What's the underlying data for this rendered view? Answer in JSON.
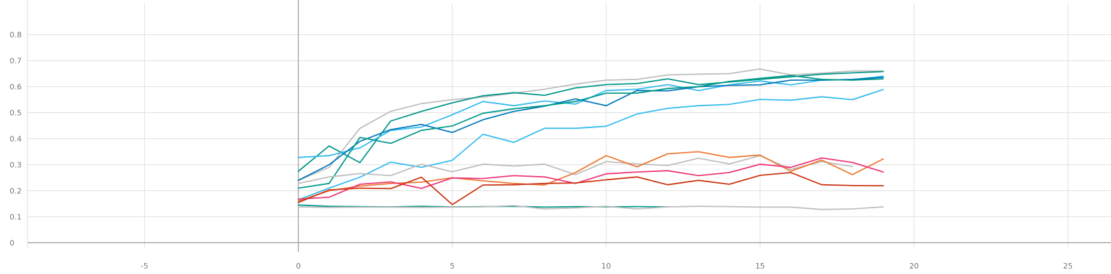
{
  "chart_data": {
    "type": "line",
    "title": "",
    "xlabel": "",
    "ylabel": "",
    "xlim": [
      -8.8,
      26.4
    ],
    "ylim": [
      -0.02,
      0.92
    ],
    "grid": true,
    "legend": "none",
    "x_ticks": [
      -5,
      0,
      5,
      10,
      15,
      20,
      25
    ],
    "x_tick_labels": [
      "-5",
      "0",
      "5",
      "10",
      "15",
      "20",
      "25"
    ],
    "y_ticks": [
      0,
      0.1,
      0.2,
      0.3,
      0.4,
      0.5,
      0.6,
      0.7,
      0.8
    ],
    "y_tick_labels": [
      "0",
      "0.1",
      "0.2",
      "0.3",
      "0.4",
      "0.5",
      "0.6",
      "0.7",
      "0.8"
    ],
    "series": [
      {
        "color": "#bdbdbd",
        "x": [
          0,
          1,
          2,
          3,
          4,
          5,
          6,
          7,
          8,
          9,
          10,
          11,
          12,
          13,
          14,
          15,
          16,
          17,
          18,
          19
        ],
        "values": [
          0.24,
          0.29,
          0.44,
          0.505,
          0.535,
          0.55,
          0.56,
          0.575,
          0.59,
          0.61,
          0.625,
          0.628,
          0.645,
          0.648,
          0.65,
          0.668,
          0.645,
          0.652,
          0.66,
          0.66
        ]
      },
      {
        "color": "#009688",
        "x": [
          0,
          1,
          2,
          3,
          4,
          5,
          6,
          7,
          8,
          9,
          10,
          11,
          12,
          13,
          14,
          15,
          16,
          17,
          18,
          19
        ],
        "values": [
          0.275,
          0.372,
          0.308,
          0.468,
          0.505,
          0.538,
          0.565,
          0.577,
          0.567,
          0.595,
          0.608,
          0.612,
          0.63,
          0.608,
          0.618,
          0.628,
          0.638,
          0.648,
          0.653,
          0.658
        ]
      },
      {
        "color": "#33bbee",
        "x": [
          0,
          1,
          2,
          3,
          4,
          5,
          6,
          7,
          8,
          9,
          10,
          11,
          12,
          13,
          14,
          15,
          16,
          17,
          18,
          19
        ],
        "values": [
          0.328,
          0.335,
          0.365,
          0.432,
          0.445,
          0.492,
          0.543,
          0.527,
          0.545,
          0.533,
          0.585,
          0.59,
          0.608,
          0.585,
          0.607,
          0.622,
          0.607,
          0.625,
          0.627,
          0.64
        ]
      },
      {
        "color": "#0077bb",
        "x": [
          0,
          1,
          2,
          3,
          4,
          5,
          6,
          7,
          8,
          9,
          10,
          11,
          12,
          13,
          14,
          15,
          16,
          17,
          18,
          19
        ],
        "values": [
          0.24,
          0.3,
          0.39,
          0.435,
          0.455,
          0.424,
          0.473,
          0.505,
          0.525,
          0.553,
          0.527,
          0.585,
          0.584,
          0.6,
          0.605,
          0.607,
          0.625,
          0.625,
          0.628,
          0.636
        ]
      },
      {
        "color": "#009988",
        "x": [
          0,
          1,
          2,
          3,
          4,
          5,
          6,
          7,
          8,
          9,
          10,
          11,
          12,
          13,
          14,
          15,
          16,
          17,
          18,
          19
        ],
        "values": [
          0.21,
          0.228,
          0.405,
          0.382,
          0.432,
          0.449,
          0.498,
          0.515,
          0.527,
          0.543,
          0.575,
          0.575,
          0.593,
          0.6,
          0.62,
          0.632,
          0.643,
          0.628,
          0.625,
          0.63
        ]
      },
      {
        "color": "#33bbee",
        "x": [
          0,
          1,
          2,
          3,
          4,
          5,
          6,
          7,
          8,
          9,
          10,
          11,
          12,
          13,
          14,
          15,
          16,
          17,
          18,
          19
        ],
        "values": [
          0.165,
          0.21,
          0.252,
          0.31,
          0.29,
          0.317,
          0.417,
          0.386,
          0.44,
          0.44,
          0.448,
          0.495,
          0.517,
          0.527,
          0.532,
          0.551,
          0.548,
          0.561,
          0.55,
          0.589
        ]
      },
      {
        "color": "#bdbdbd",
        "x": [
          0,
          1,
          2,
          3,
          4,
          5,
          6,
          7,
          8,
          9,
          10,
          11,
          12,
          13,
          14,
          15,
          16,
          17,
          18
        ],
        "values": [
          0.228,
          0.253,
          0.266,
          0.258,
          0.302,
          0.273,
          0.302,
          0.295,
          0.302,
          0.262,
          0.312,
          0.303,
          0.297,
          0.325,
          0.303,
          0.335,
          0.282,
          0.312,
          0.293
        ]
      },
      {
        "color": "#ee7733",
        "x": [
          0,
          1,
          2,
          3,
          4,
          5,
          6,
          7,
          8,
          9,
          10,
          11,
          12,
          13,
          14,
          15,
          16,
          17,
          18,
          19
        ],
        "values": [
          0.16,
          0.2,
          0.218,
          0.228,
          0.233,
          0.25,
          0.238,
          0.228,
          0.222,
          0.27,
          0.335,
          0.292,
          0.342,
          0.35,
          0.328,
          0.337,
          0.275,
          0.318,
          0.262,
          0.322
        ]
      },
      {
        "color": "#ee3377",
        "x": [
          0,
          1,
          2,
          3,
          4,
          5,
          6,
          7,
          8,
          9,
          10,
          11,
          12,
          13,
          14,
          15,
          16,
          17,
          18,
          19
        ],
        "values": [
          0.168,
          0.175,
          0.225,
          0.234,
          0.209,
          0.249,
          0.247,
          0.258,
          0.253,
          0.228,
          0.265,
          0.272,
          0.277,
          0.258,
          0.27,
          0.302,
          0.29,
          0.326,
          0.309,
          0.272
        ]
      },
      {
        "color": "#cc3311",
        "x": [
          0,
          1,
          2,
          3,
          4,
          5,
          6,
          7,
          8,
          9,
          10,
          11,
          12,
          13,
          14,
          15,
          16,
          17,
          18,
          19
        ],
        "values": [
          0.155,
          0.203,
          0.21,
          0.208,
          0.252,
          0.147,
          0.222,
          0.223,
          0.228,
          0.23,
          0.242,
          0.253,
          0.223,
          0.24,
          0.225,
          0.259,
          0.27,
          0.223,
          0.22,
          0.219
        ]
      },
      {
        "color": "#009988",
        "x": [
          0,
          1,
          2,
          3,
          4,
          5,
          6,
          7,
          8,
          9,
          10,
          11,
          12
        ],
        "values": [
          0.145,
          0.14,
          0.139,
          0.138,
          0.14,
          0.138,
          0.139,
          0.14,
          0.137,
          0.139,
          0.138,
          0.139,
          0.138
        ]
      },
      {
        "color": "#bdbdbd",
        "x": [
          0,
          1,
          2,
          3,
          4,
          5,
          6,
          7,
          8,
          9,
          10,
          11,
          12,
          13,
          14,
          15,
          16,
          17,
          18,
          19
        ],
        "values": [
          0.138,
          0.136,
          0.137,
          0.137,
          0.136,
          0.137,
          0.138,
          0.143,
          0.13,
          0.134,
          0.14,
          0.13,
          0.138,
          0.14,
          0.139,
          0.137,
          0.137,
          0.128,
          0.13,
          0.138
        ]
      }
    ]
  },
  "colors": {
    "grid": "#e0e0e0",
    "axis": "#9e9e9e",
    "tick_text": "#757575"
  }
}
